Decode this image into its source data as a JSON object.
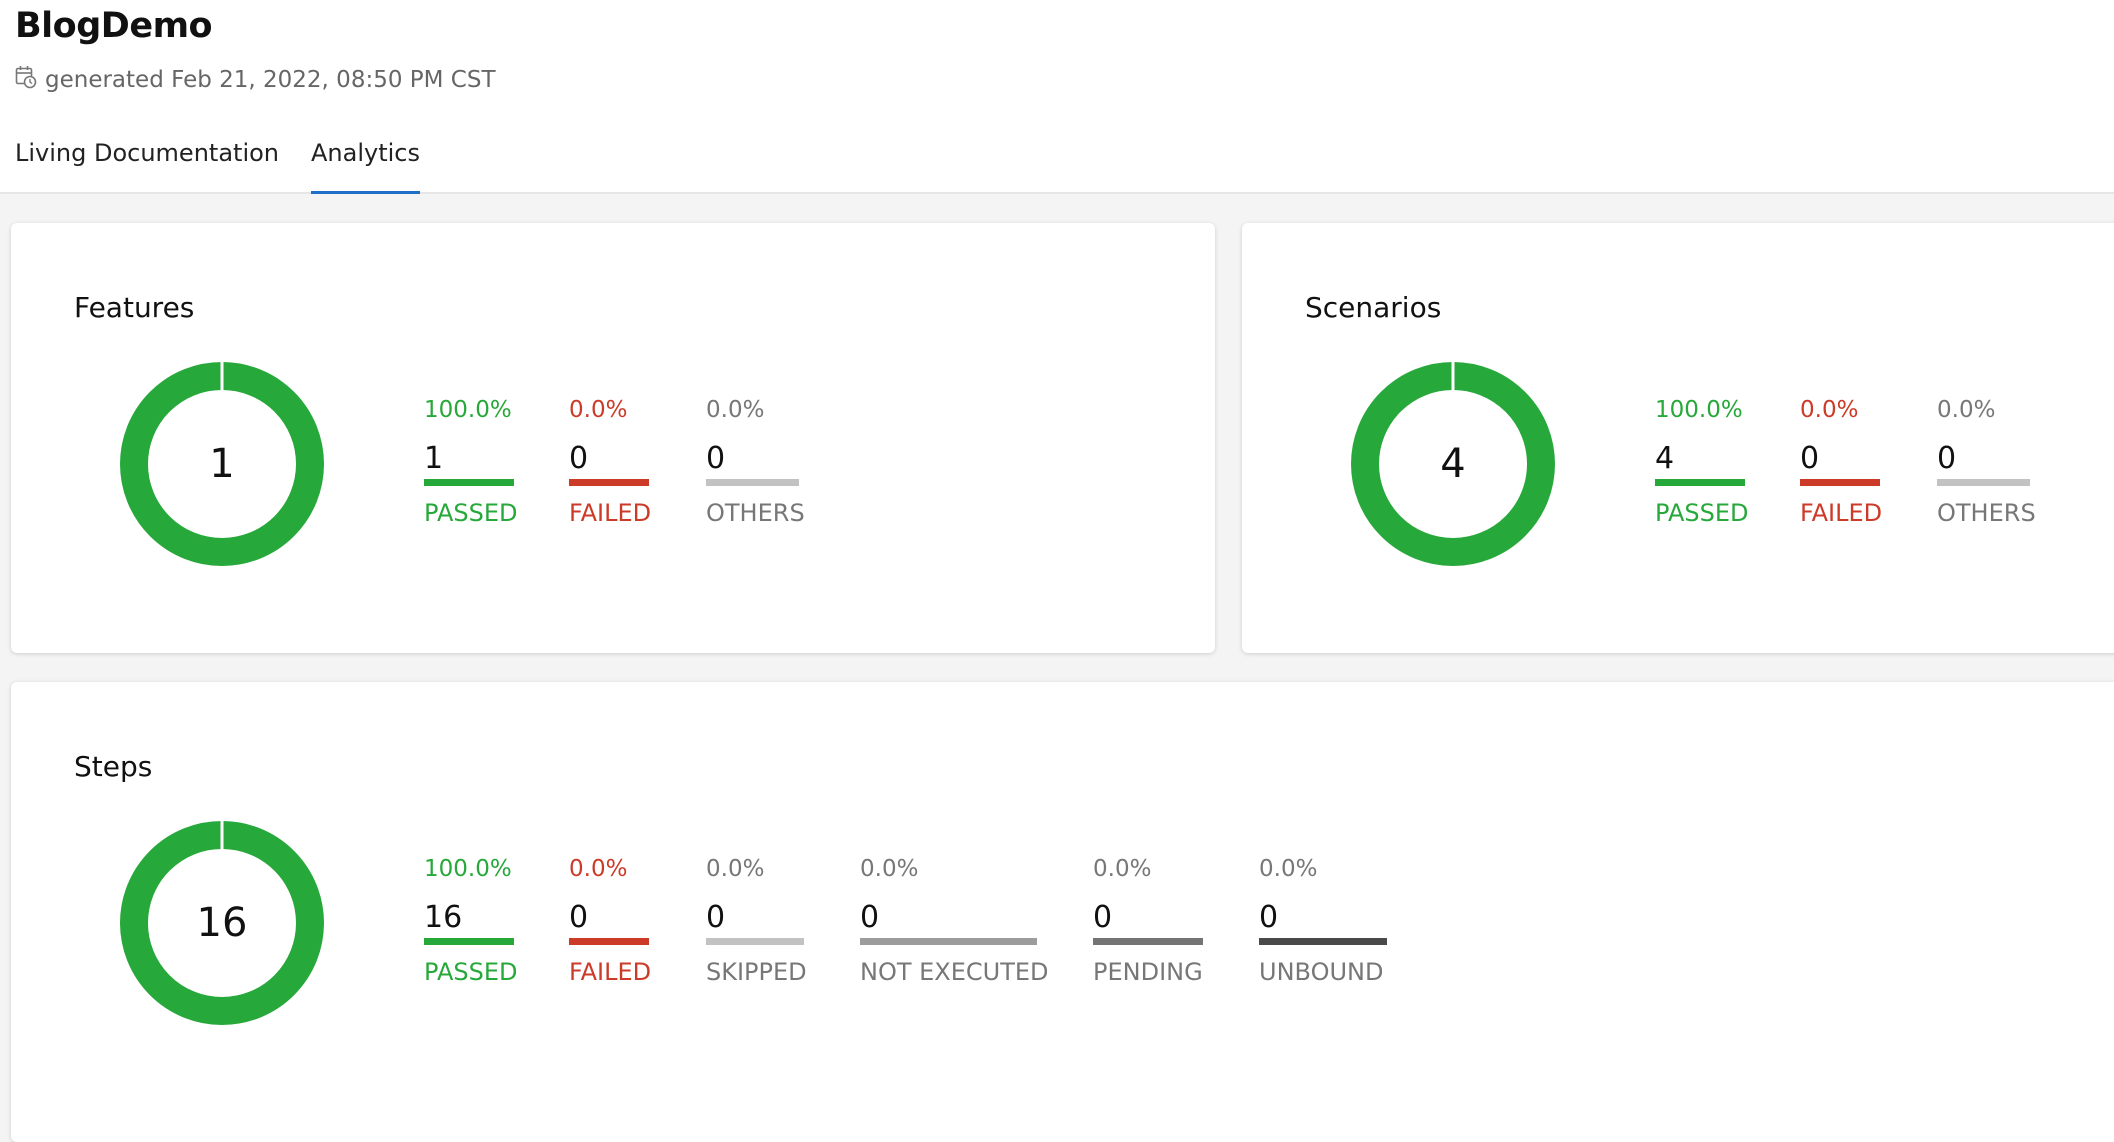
{
  "app": {
    "title": "BlogDemo",
    "generated": "generated Feb 21, 2022, 08:50 PM CST"
  },
  "tabs": [
    {
      "label": "Living Documentation",
      "active": false
    },
    {
      "label": "Analytics",
      "active": true
    }
  ],
  "colors": {
    "passed": "#27a83a",
    "failed": "#cc3a28",
    "accent": "#1f6fc9"
  },
  "features": {
    "title": "Features",
    "total": "1",
    "passed": {
      "pct": "100.0%",
      "count": "1",
      "label": "PASSED"
    },
    "failed": {
      "pct": "0.0%",
      "count": "0",
      "label": "FAILED"
    },
    "others": {
      "pct": "0.0%",
      "count": "0",
      "label": "OTHERS"
    }
  },
  "scenarios": {
    "title": "Scenarios",
    "total": "4",
    "passed": {
      "pct": "100.0%",
      "count": "4",
      "label": "PASSED"
    },
    "failed": {
      "pct": "0.0%",
      "count": "0",
      "label": "FAILED"
    },
    "others": {
      "pct": "0.0%",
      "count": "0",
      "label": "OTHERS"
    }
  },
  "steps": {
    "title": "Steps",
    "total": "16",
    "passed": {
      "pct": "100.0%",
      "count": "16",
      "label": "PASSED"
    },
    "failed": {
      "pct": "0.0%",
      "count": "0",
      "label": "FAILED"
    },
    "skipped": {
      "pct": "0.0%",
      "count": "0",
      "label": "SKIPPED"
    },
    "not_executed": {
      "pct": "0.0%",
      "count": "0",
      "label": "NOT EXECUTED"
    },
    "pending": {
      "pct": "0.0%",
      "count": "0",
      "label": "PENDING"
    },
    "unbound": {
      "pct": "0.0%",
      "count": "0",
      "label": "UNBOUND"
    }
  }
}
